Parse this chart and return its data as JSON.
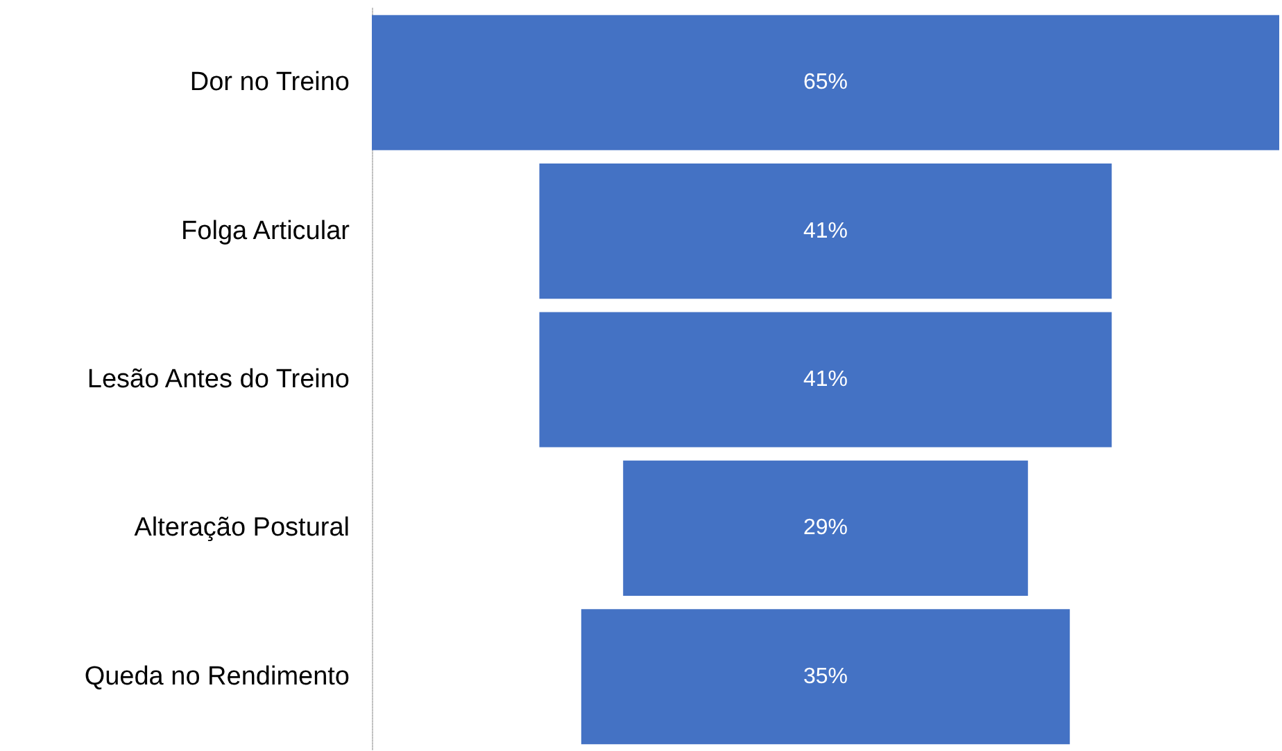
{
  "chart_data": {
    "type": "other",
    "categories": [
      "Dor no Treino",
      "Folga Articular",
      "Lesão Antes do Treino",
      "Alteração Postural",
      "Queda no Rendimento"
    ],
    "values": [
      65,
      41,
      41,
      29,
      35
    ],
    "value_labels": [
      "65%",
      "41%",
      "41%",
      "29%",
      "35%"
    ],
    "color": "#4472c4"
  }
}
